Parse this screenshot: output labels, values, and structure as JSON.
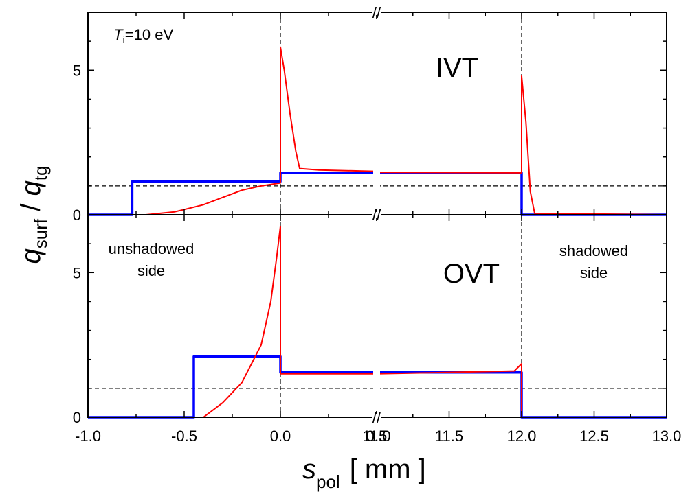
{
  "chart_data": [
    {
      "type": "line",
      "panel": "IVT",
      "label": "IVT",
      "annotation": "=10 eV",
      "annotation_symbol": "T",
      "annotation_subscript": "i",
      "x_segments": [
        [
          -1.0,
          0.5
        ],
        [
          11.0,
          13.0
        ]
      ],
      "ylim": [
        0,
        7
      ],
      "yticks": [
        0,
        5
      ],
      "ref_y": 1,
      "vlines": [
        0.0,
        12.0
      ],
      "series": [
        {
          "color": "#0000ff",
          "points": [
            [
              -1.0,
              0
            ],
            [
              -0.77,
              0
            ],
            [
              -0.77,
              1.15
            ],
            [
              0.0,
              1.15
            ],
            [
              0.0,
              1.45
            ],
            [
              0.5,
              1.45
            ],
            [
              11.0,
              1.45
            ],
            [
              12.0,
              1.45
            ],
            [
              12.0,
              0
            ],
            [
              13.0,
              0
            ]
          ]
        },
        {
          "color": "#ff0000",
          "points": [
            [
              -1.0,
              0
            ],
            [
              -0.7,
              0
            ],
            [
              -0.55,
              0.1
            ],
            [
              -0.4,
              0.35
            ],
            [
              -0.3,
              0.6
            ],
            [
              -0.2,
              0.85
            ],
            [
              -0.1,
              1.0
            ],
            [
              0.0,
              1.1
            ],
            [
              0.0,
              5.8
            ],
            [
              0.02,
              5.0
            ],
            [
              0.05,
              3.5
            ],
            [
              0.08,
              2.2
            ],
            [
              0.1,
              1.6
            ],
            [
              0.2,
              1.55
            ],
            [
              0.5,
              1.5
            ],
            [
              11.0,
              1.47
            ],
            [
              12.0,
              1.45
            ],
            [
              12.0,
              4.8
            ],
            [
              12.03,
              3.2
            ],
            [
              12.06,
              0.8
            ],
            [
              12.09,
              0.05
            ],
            [
              13.0,
              0
            ]
          ]
        }
      ]
    },
    {
      "type": "line",
      "panel": "OVT",
      "label": "OVT",
      "left_note": [
        "unshadowed",
        "side"
      ],
      "right_note": [
        "shadowed",
        "side"
      ],
      "x_segments": [
        [
          -1.0,
          0.5
        ],
        [
          11.0,
          13.0
        ]
      ],
      "ylim": [
        0,
        7
      ],
      "yticks": [
        0,
        5
      ],
      "ref_y": 1,
      "vlines": [
        0.0,
        12.0
      ],
      "series": [
        {
          "color": "#0000ff",
          "points": [
            [
              -1.0,
              0
            ],
            [
              -0.45,
              0
            ],
            [
              -0.45,
              2.1
            ],
            [
              0.0,
              2.1
            ],
            [
              0.0,
              1.55
            ],
            [
              0.5,
              1.55
            ],
            [
              11.0,
              1.55
            ],
            [
              11.95,
              1.55
            ],
            [
              12.0,
              1.55
            ],
            [
              12.0,
              0
            ],
            [
              13.0,
              0
            ]
          ]
        },
        {
          "color": "#ff0000",
          "points": [
            [
              -1.0,
              0
            ],
            [
              -0.4,
              0
            ],
            [
              -0.3,
              0.5
            ],
            [
              -0.2,
              1.2
            ],
            [
              -0.1,
              2.5
            ],
            [
              -0.05,
              4.0
            ],
            [
              -0.02,
              5.5
            ],
            [
              0.0,
              6.6
            ],
            [
              0.0,
              1.5
            ],
            [
              0.5,
              1.5
            ],
            [
              11.0,
              1.5
            ],
            [
              11.95,
              1.6
            ],
            [
              12.0,
              1.85
            ],
            [
              12.0,
              0
            ],
            [
              13.0,
              0
            ]
          ]
        }
      ]
    }
  ],
  "axes": {
    "xticks": [
      {
        "value": -1.0,
        "label": "-1.0"
      },
      {
        "value": -0.5,
        "label": "-0.5"
      },
      {
        "value": 0.0,
        "label": "0.0"
      },
      {
        "value": 0.5,
        "label": "0.5"
      },
      {
        "value": 11.0,
        "label": "11.0"
      },
      {
        "value": 11.5,
        "label": "11.5"
      },
      {
        "value": 12.0,
        "label": "12.0"
      },
      {
        "value": 12.5,
        "label": "12.5"
      },
      {
        "value": 13.0,
        "label": "13.0"
      }
    ],
    "xlabel_main": "s",
    "xlabel_sub": "pol",
    "xlabel_unit": "[ mm ]",
    "ylabel_num": "q",
    "ylabel_num_sub": "surf",
    "ylabel_slash": " / ",
    "ylabel_den": "q",
    "ylabel_den_sub": "tg",
    "break_mark": "//"
  }
}
